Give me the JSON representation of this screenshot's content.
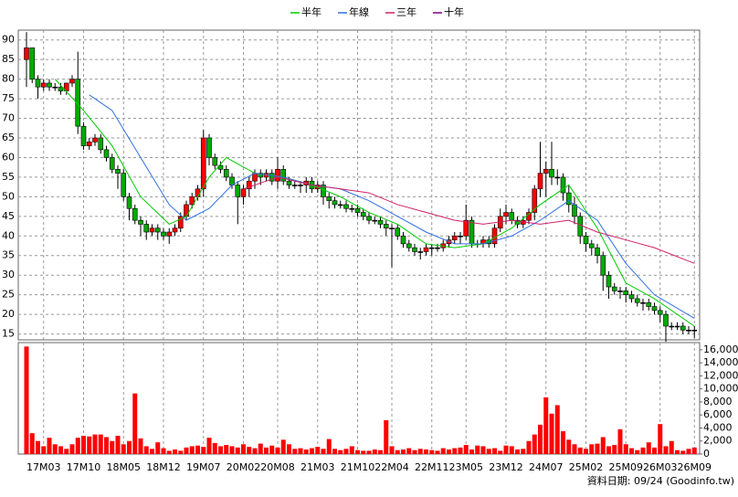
{
  "chart_data": {
    "type": "candlestick",
    "categories": [
      null,
      null,
      null,
      "17M03",
      null,
      null,
      null,
      null,
      null,
      null,
      "17M10",
      null,
      null,
      null,
      null,
      null,
      null,
      "18M05",
      null,
      null,
      null,
      null,
      null,
      null,
      "18M12",
      null,
      null,
      null,
      null,
      null,
      null,
      "19M07",
      null,
      null,
      null,
      null,
      null,
      null,
      "20M02",
      null,
      null,
      null,
      null,
      null,
      "20M08",
      null,
      null,
      null,
      null,
      null,
      null,
      "21M03",
      null,
      null,
      null,
      null,
      null,
      null,
      "21M10",
      null,
      null,
      null,
      null,
      null,
      "22M04",
      null,
      null,
      null,
      null,
      null,
      null,
      "22M11",
      null,
      null,
      null,
      null,
      null,
      "23M05",
      null,
      null,
      null,
      null,
      null,
      null,
      "23M12",
      null,
      null,
      null,
      null,
      null,
      null,
      "24M07",
      null,
      null,
      null,
      null,
      null,
      null,
      "25M02",
      null,
      null,
      null,
      null,
      null,
      null,
      "25M09",
      null,
      null,
      null,
      null,
      null,
      "26M03",
      null,
      null,
      null,
      null,
      null,
      "26M09"
    ],
    "open": [
      85,
      88,
      80,
      78,
      79,
      78,
      78,
      77,
      79,
      80,
      68,
      63,
      64,
      65,
      62,
      60,
      57,
      56,
      50,
      47,
      44,
      43,
      41,
      42,
      41,
      40,
      41,
      42,
      45,
      48,
      50,
      52,
      65,
      60,
      58,
      57,
      55,
      53,
      50,
      52,
      54,
      56,
      55,
      56,
      54,
      57,
      54,
      53,
      53,
      53,
      54,
      52,
      53,
      50,
      49,
      48,
      48,
      47,
      47,
      46,
      45,
      44,
      44,
      43,
      42,
      42,
      40,
      38,
      37,
      36,
      36,
      37,
      37,
      37,
      38,
      39,
      40,
      40,
      44,
      38,
      38,
      39,
      38,
      42,
      45,
      46,
      44,
      43,
      44,
      46,
      52,
      56,
      57,
      55,
      55,
      51,
      48,
      45,
      40,
      38,
      37,
      35,
      30,
      27,
      26,
      26,
      25,
      24,
      23,
      23,
      22,
      21,
      20,
      17,
      17,
      17,
      16,
      16
    ],
    "high": [
      92,
      88,
      81,
      80,
      80,
      79,
      79,
      79,
      81,
      87,
      69,
      65,
      66,
      66,
      63,
      61,
      58,
      57,
      51,
      48,
      45,
      44,
      43,
      43,
      42,
      42,
      43,
      46,
      49,
      51,
      53,
      67,
      66,
      61,
      59,
      58,
      56,
      54,
      53,
      55,
      57,
      57,
      57,
      57,
      60,
      58,
      55,
      54,
      54,
      55,
      55,
      54,
      54,
      51,
      50,
      49,
      49,
      48,
      48,
      47,
      46,
      45,
      45,
      44,
      43,
      43,
      41,
      39,
      38,
      37,
      38,
      38,
      38,
      39,
      40,
      41,
      41,
      48,
      45,
      39,
      40,
      40,
      43,
      47,
      48,
      47,
      45,
      45,
      47,
      53,
      64,
      59,
      64,
      57,
      56,
      53,
      50,
      46,
      41,
      39,
      38,
      36,
      31,
      28,
      27,
      27,
      26,
      25,
      24,
      24,
      23,
      22,
      21,
      18,
      18,
      18,
      17,
      17
    ],
    "low": [
      78,
      79,
      75,
      77,
      77,
      77,
      76,
      76,
      78,
      66,
      62,
      62,
      63,
      61,
      59,
      56,
      52,
      49,
      44,
      43,
      40,
      39,
      40,
      39,
      39,
      38,
      40,
      41,
      44,
      47,
      49,
      50,
      58,
      57,
      56,
      54,
      52,
      43,
      48,
      50,
      52,
      53,
      54,
      53,
      52,
      53,
      52,
      52,
      51,
      51,
      51,
      51,
      48,
      47,
      47,
      47,
      46,
      46,
      45,
      44,
      43,
      43,
      42,
      40,
      32,
      39,
      37,
      36,
      35,
      34,
      35,
      35,
      36,
      36,
      37,
      38,
      38,
      39,
      37,
      37,
      37,
      37,
      37,
      41,
      43,
      43,
      42,
      42,
      43,
      44,
      50,
      50,
      53,
      53,
      49,
      46,
      43,
      38,
      36,
      35,
      33,
      26,
      24,
      25,
      24,
      23,
      23,
      22,
      21,
      21,
      20,
      18,
      13,
      16,
      16,
      15,
      15,
      14
    ],
    "close": [
      88,
      80,
      78,
      79,
      78,
      78,
      77,
      79,
      80,
      68,
      63,
      64,
      65,
      62,
      60,
      57,
      56,
      50,
      47,
      44,
      43,
      41,
      42,
      41,
      40,
      41,
      42,
      45,
      48,
      50,
      52,
      65,
      60,
      58,
      57,
      55,
      53,
      50,
      52,
      54,
      56,
      55,
      56,
      54,
      57,
      54,
      53,
      53,
      53,
      54,
      52,
      53,
      50,
      49,
      48,
      48,
      47,
      47,
      46,
      45,
      44,
      44,
      43,
      42,
      42,
      40,
      38,
      37,
      36,
      36,
      37,
      37,
      37,
      38,
      39,
      40,
      40,
      44,
      38,
      38,
      39,
      38,
      42,
      45,
      46,
      44,
      43,
      44,
      46,
      52,
      56,
      57,
      55,
      55,
      51,
      48,
      45,
      40,
      38,
      37,
      35,
      30,
      27,
      26,
      26,
      25,
      24,
      23,
      23,
      22,
      21,
      20,
      17,
      17,
      17,
      16,
      16,
      16
    ],
    "up_color": "#ff0000",
    "down_color": "#00aa00",
    "ylim": [
      13.5,
      92.5
    ],
    "yticks": [
      15,
      20,
      25,
      30,
      35,
      40,
      45,
      50,
      55,
      60,
      65,
      70,
      75,
      80,
      85,
      90
    ],
    "grid": true,
    "series": [
      {
        "name": "半年",
        "color": "#00cc00",
        "x": [
          5,
          10,
          15,
          20,
          25,
          28,
          32,
          35,
          40,
          45,
          50,
          55,
          60,
          65,
          70,
          75,
          80,
          85,
          90,
          95,
          100,
          105,
          110,
          117
        ],
        "values": [
          80,
          72,
          63,
          50,
          43,
          45,
          55,
          60,
          56,
          55,
          53,
          50,
          46,
          43,
          38,
          37,
          38,
          42,
          48,
          53,
          42,
          28,
          24,
          17
        ]
      },
      {
        "name": "年線",
        "color": "#3070e0",
        "x": [
          11,
          15,
          20,
          25,
          28,
          32,
          36,
          40,
          45,
          50,
          55,
          60,
          65,
          70,
          75,
          80,
          85,
          90,
          95,
          100,
          105,
          110,
          117
        ],
        "values": [
          76,
          72,
          60,
          48,
          44,
          47,
          53,
          56,
          55,
          53,
          52,
          49,
          45,
          41,
          38,
          38,
          40,
          44,
          49,
          44,
          33,
          25,
          19
        ]
      },
      {
        "name": "三年",
        "color": "#d0206a",
        "x": [
          38,
          44,
          50,
          55,
          60,
          65,
          70,
          75,
          80,
          85,
          90,
          95,
          100,
          105,
          110,
          117
        ],
        "values": [
          52,
          55,
          53,
          52,
          51,
          48,
          46,
          44,
          43,
          44,
          43,
          44,
          41,
          39,
          37,
          33
        ]
      },
      {
        "name": "十年",
        "color": "#800080",
        "x": [],
        "values": []
      }
    ],
    "volume": {
      "color": "#ff0000",
      "values": [
        16500,
        3200,
        2000,
        1200,
        2500,
        1500,
        1200,
        800,
        1500,
        2500,
        2800,
        2700,
        3000,
        3000,
        2600,
        2000,
        2800,
        1500,
        2000,
        9300,
        2400,
        1200,
        800,
        1800,
        900,
        500,
        700,
        500,
        1000,
        1200,
        1300,
        1100,
        2500,
        1700,
        1200,
        1400,
        1200,
        1000,
        1500,
        1100,
        900,
        1600,
        1000,
        1300,
        1000,
        2200,
        1500,
        800,
        900,
        700,
        900,
        1100,
        800,
        2300,
        800,
        600,
        800,
        1200,
        600,
        500,
        500,
        700,
        600,
        5200,
        1200,
        600,
        700,
        900,
        600,
        800,
        700,
        600,
        500,
        900,
        700,
        900,
        1000,
        1400,
        700,
        1300,
        1200,
        800,
        900,
        500,
        1300,
        1200,
        700,
        800,
        2000,
        3000,
        4500,
        8700,
        6200,
        7500,
        3500,
        2200,
        1500,
        1000,
        800,
        1500,
        1600,
        2600,
        1200,
        1400,
        3800,
        1500,
        900,
        600,
        1000,
        1800,
        1000,
        4600,
        1200,
        2000,
        600,
        500,
        800,
        1000
      ],
      "ylim": [
        0,
        17100
      ],
      "yticks": [
        0,
        {
          "value": 2000,
          "label": "2,000"
        },
        {
          "value": 4000,
          "label": "4,000"
        },
        {
          "value": 6000,
          "label": "6,000"
        },
        {
          "value": 8000,
          "label": "8,000"
        },
        {
          "value": 10000,
          "label": "10,000"
        },
        {
          "value": 12000,
          "label": "12,000"
        },
        {
          "value": 14000,
          "label": "14,000"
        },
        {
          "value": 16000,
          "label": "16,000"
        }
      ]
    },
    "footer": "資料日期: 09/24 (Goodinfo.tw)"
  }
}
